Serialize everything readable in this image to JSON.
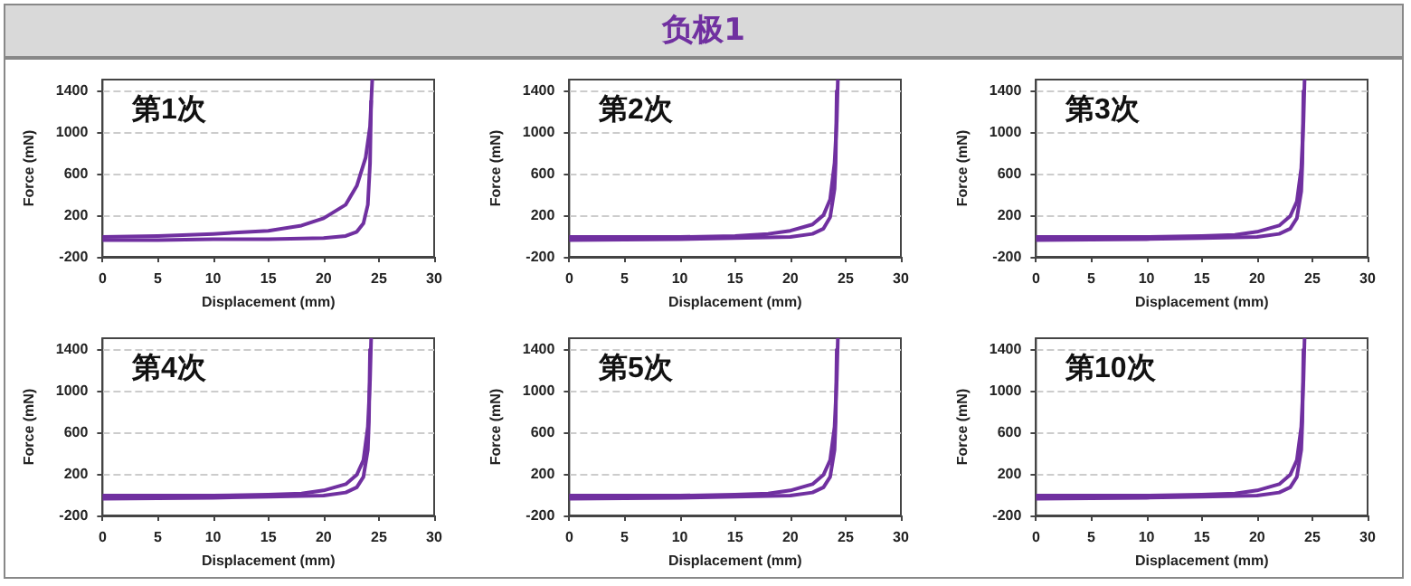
{
  "chart_data": [
    {
      "type": "other",
      "title": "负极1"
    },
    {
      "type": "line",
      "title": "第1次",
      "xlabel": "Displacement (mm)",
      "ylabel": "Force (mN)",
      "xlim": [
        0,
        30
      ],
      "xticks": [
        0,
        5,
        10,
        15,
        20,
        25,
        30
      ],
      "ylim": [
        -200,
        1500
      ],
      "yticks": [
        -200,
        200,
        600,
        1000,
        1400
      ],
      "grid": "y",
      "series": [
        {
          "color": "#7030a0",
          "x": [
            0,
            5,
            10,
            15,
            18,
            20,
            22,
            23,
            23.8,
            24.2,
            24.4
          ],
          "values": [
            -10,
            0,
            20,
            50,
            100,
            170,
            300,
            480,
            750,
            1050,
            1500
          ]
        },
        {
          "color": "#7030a0",
          "x": [
            0,
            5,
            10,
            15,
            20,
            22,
            23,
            23.6,
            24,
            24.2,
            24.3
          ],
          "values": [
            -40,
            -40,
            -30,
            -30,
            -20,
            0,
            40,
            120,
            300,
            700,
            1300
          ]
        }
      ]
    },
    {
      "type": "line",
      "title": "第2次",
      "xlabel": "Displacement (mm)",
      "ylabel": "Force (mN)",
      "xlim": [
        0,
        30
      ],
      "xticks": [
        0,
        5,
        10,
        15,
        20,
        25,
        30
      ],
      "ylim": [
        -200,
        1500
      ],
      "yticks": [
        -200,
        200,
        600,
        1000,
        1400
      ],
      "grid": "y",
      "series": [
        {
          "color": "#7030a0",
          "x": [
            0,
            10,
            15,
            18,
            20,
            22,
            23,
            23.6,
            24,
            24.2,
            24.3
          ],
          "values": [
            -10,
            -10,
            0,
            20,
            50,
            110,
            200,
            350,
            700,
            1100,
            1500
          ]
        },
        {
          "color": "#7030a0",
          "x": [
            0,
            10,
            15,
            20,
            22,
            23,
            23.6,
            24,
            24.1,
            24.2
          ],
          "values": [
            -40,
            -30,
            -20,
            -10,
            20,
            70,
            180,
            450,
            700,
            1400
          ]
        }
      ]
    },
    {
      "type": "line",
      "title": "第3次",
      "xlabel": "Displacement (mm)",
      "ylabel": "Force (mN)",
      "xlim": [
        0,
        30
      ],
      "xticks": [
        0,
        5,
        10,
        15,
        20,
        25,
        30
      ],
      "ylim": [
        -200,
        1500
      ],
      "yticks": [
        -200,
        200,
        600,
        1000,
        1400
      ],
      "grid": "y",
      "series": [
        {
          "color": "#7030a0",
          "x": [
            0,
            10,
            15,
            18,
            20,
            22,
            23,
            23.6,
            24,
            24.2,
            24.3
          ],
          "values": [
            -10,
            -10,
            0,
            10,
            40,
            100,
            190,
            330,
            650,
            1100,
            1500
          ]
        },
        {
          "color": "#7030a0",
          "x": [
            0,
            10,
            15,
            20,
            22,
            23,
            23.6,
            24,
            24.1,
            24.2
          ],
          "values": [
            -40,
            -30,
            -20,
            -10,
            20,
            70,
            170,
            430,
            700,
            1400
          ]
        }
      ]
    },
    {
      "type": "line",
      "title": "第4次",
      "xlabel": "Displacement (mm)",
      "ylabel": "Force (mN)",
      "xlim": [
        0,
        30
      ],
      "xticks": [
        0,
        5,
        10,
        15,
        20,
        25,
        30
      ],
      "ylim": [
        -200,
        1500
      ],
      "yticks": [
        -200,
        200,
        600,
        1000,
        1400
      ],
      "grid": "y",
      "series": [
        {
          "color": "#7030a0",
          "x": [
            0,
            10,
            15,
            18,
            20,
            22,
            23,
            23.6,
            24,
            24.2,
            24.3
          ],
          "values": [
            -10,
            -10,
            0,
            10,
            40,
            100,
            190,
            330,
            650,
            1100,
            1500
          ]
        },
        {
          "color": "#7030a0",
          "x": [
            0,
            10,
            15,
            20,
            22,
            23,
            23.6,
            24,
            24.1,
            24.2
          ],
          "values": [
            -40,
            -30,
            -20,
            -10,
            20,
            70,
            170,
            430,
            700,
            1400
          ]
        }
      ]
    },
    {
      "type": "line",
      "title": "第5次",
      "xlabel": "Displacement (mm)",
      "ylabel": "Force (mN)",
      "xlim": [
        0,
        30
      ],
      "xticks": [
        0,
        5,
        10,
        15,
        20,
        25,
        30
      ],
      "ylim": [
        -200,
        1500
      ],
      "yticks": [
        -200,
        200,
        600,
        1000,
        1400
      ],
      "grid": "y",
      "series": [
        {
          "color": "#7030a0",
          "x": [
            0,
            10,
            15,
            18,
            20,
            22,
            23,
            23.6,
            24,
            24.2,
            24.3
          ],
          "values": [
            -10,
            -10,
            0,
            10,
            40,
            100,
            190,
            330,
            650,
            1100,
            1500
          ]
        },
        {
          "color": "#7030a0",
          "x": [
            0,
            10,
            15,
            20,
            22,
            23,
            23.6,
            24,
            24.1,
            24.2
          ],
          "values": [
            -40,
            -30,
            -20,
            -10,
            20,
            70,
            170,
            430,
            700,
            1400
          ]
        }
      ]
    },
    {
      "type": "line",
      "title": "第10次",
      "xlabel": "Displacement (mm)",
      "ylabel": "Force (mN)",
      "xlim": [
        0,
        30
      ],
      "xticks": [
        0,
        5,
        10,
        15,
        20,
        25,
        30
      ],
      "ylim": [
        -200,
        1500
      ],
      "yticks": [
        -200,
        200,
        600,
        1000,
        1400
      ],
      "grid": "y",
      "series": [
        {
          "color": "#7030a0",
          "x": [
            0,
            10,
            15,
            18,
            20,
            22,
            23,
            23.6,
            24,
            24.2,
            24.3
          ],
          "values": [
            -10,
            -10,
            0,
            10,
            40,
            100,
            190,
            330,
            650,
            1100,
            1500
          ]
        },
        {
          "color": "#7030a0",
          "x": [
            0,
            10,
            15,
            20,
            22,
            23,
            23.6,
            24,
            24.1,
            24.2
          ],
          "values": [
            -40,
            -30,
            -20,
            -10,
            20,
            70,
            170,
            430,
            700,
            1400
          ]
        }
      ]
    }
  ]
}
